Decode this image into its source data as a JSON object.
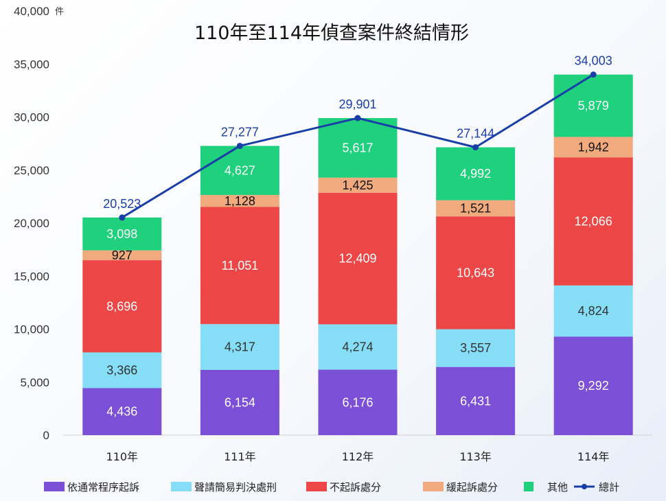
{
  "chart_data": {
    "type": "bar",
    "stacked": true,
    "title": "110年至114年偵查案件終結情形",
    "unit": "件",
    "categories": [
      "110年",
      "111年",
      "112年",
      "113年",
      "114年"
    ],
    "ylim": [
      0,
      40000
    ],
    "yticks": [
      0,
      5000,
      10000,
      15000,
      20000,
      25000,
      30000,
      35000,
      40000
    ],
    "ytick_labels": [
      "0",
      "5,000",
      "10,000",
      "15,000",
      "20,000",
      "25,000",
      "30,000",
      "35,000",
      "40,000"
    ],
    "series": [
      {
        "name": "依通常程序起訴",
        "color": "#7b4fd6",
        "label_color": "#ffffff",
        "values": [
          4436,
          6154,
          6176,
          6431,
          9292
        ],
        "labels": [
          "4,436",
          "6,154",
          "6,176",
          "6,431",
          "9,292"
        ]
      },
      {
        "name": "聲請簡易判決處刑",
        "color": "#85def5",
        "label_color": "#333333",
        "values": [
          3366,
          4317,
          4274,
          3557,
          4824
        ],
        "labels": [
          "3,366",
          "4,317",
          "4,274",
          "3,557",
          "4,824"
        ]
      },
      {
        "name": "不起訴處分",
        "color": "#ec4646",
        "label_color": "#ffffff",
        "values": [
          8696,
          11051,
          12409,
          10643,
          12066
        ],
        "labels": [
          "8,696",
          "11,051",
          "12,409",
          "10,643",
          "12,066"
        ]
      },
      {
        "name": "緩起訴處分",
        "color": "#f1aa7e",
        "label_color": "#111111",
        "values": [
          927,
          1128,
          1425,
          1521,
          1942
        ],
        "labels": [
          "927",
          "1,128",
          "1,425",
          "1,521",
          "1,942"
        ]
      },
      {
        "name": "其他",
        "color": "#1fd07d",
        "label_color": "#ffffff",
        "values": [
          3098,
          4627,
          5617,
          4992,
          5879
        ],
        "labels": [
          "3,098",
          "4,627",
          "5,617",
          "4,992",
          "5,879"
        ]
      }
    ],
    "line": {
      "name": "總計",
      "color": "#1a3ea8",
      "values": [
        20523,
        27277,
        29901,
        27144,
        34003
      ],
      "labels": [
        "20,523",
        "27,277",
        "29,901",
        "27,144",
        "34,003"
      ]
    },
    "legend_position": "bottom",
    "grid": false
  }
}
